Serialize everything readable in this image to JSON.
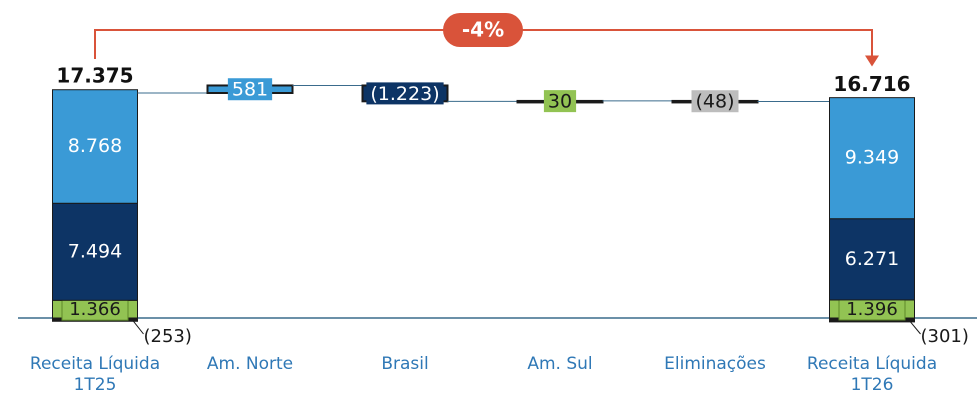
{
  "chart_data": {
    "type": "waterfall",
    "categories": [
      "Receita Líquida 1T25",
      "Am. Norte",
      "Brasil",
      "Am. Sul",
      "Eliminações",
      "Receita Líquida 1T26"
    ],
    "start": {
      "total": 17375,
      "total_label": "17.375",
      "values": [
        -253,
        1366,
        7494,
        8768
      ],
      "value_labels": [
        "(253)",
        "1.366",
        "7.494",
        "8.768"
      ],
      "colors": [
        "#1a1a1a",
        "#92c353",
        "#0d3465",
        "#3a9ad6"
      ]
    },
    "changes": {
      "values": [
        581,
        -1223,
        30,
        -48
      ],
      "value_labels": [
        "581",
        "(1.223)",
        "30",
        "(48)"
      ],
      "colors": [
        "#3a9ad6",
        "#0d3465",
        "#92c353",
        "#bdbdbd"
      ]
    },
    "end": {
      "total": 16716,
      "total_label": "16.716",
      "values": [
        -301,
        1396,
        6271,
        9349
      ],
      "value_labels": [
        "(301)",
        "1.396",
        "6.271",
        "9.349"
      ],
      "colors": [
        "#1a1a1a",
        "#92c353",
        "#0d3465",
        "#3a9ad6"
      ]
    },
    "annotation": "-4%",
    "annotation_color": "#d9533a"
  }
}
